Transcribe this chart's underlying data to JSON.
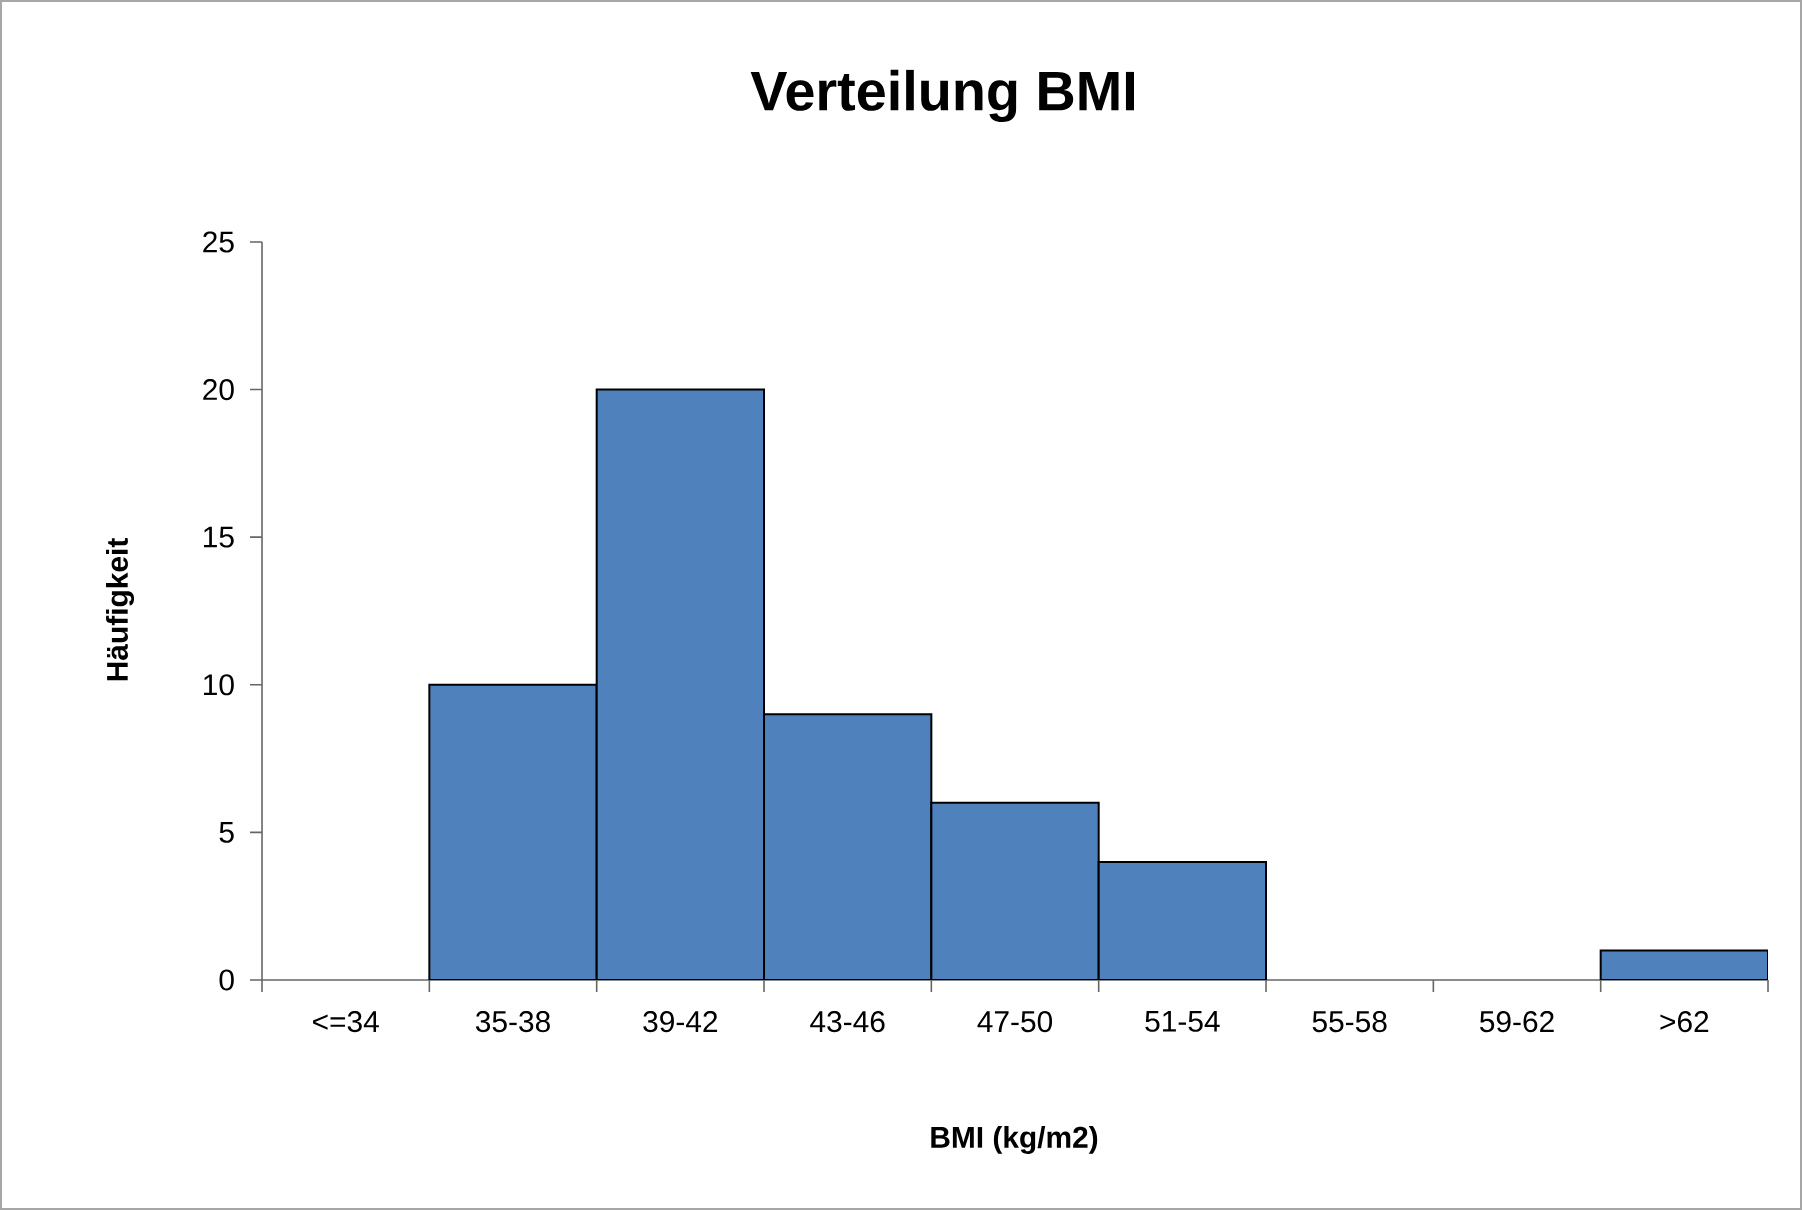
{
  "chart_data": {
    "type": "bar",
    "title": "Verteilung BMI",
    "xlabel": "BMI (kg/m2)",
    "ylabel": "Häufigkeit",
    "categories": [
      "<=34",
      "35-38",
      "39-42",
      "43-46",
      "47-50",
      "51-54",
      "55-58",
      "59-62",
      ">62"
    ],
    "values": [
      0,
      10,
      20,
      9,
      6,
      4,
      0,
      0,
      1
    ],
    "color": "#4f81bd",
    "ylim": [
      0,
      25
    ],
    "yticks": [
      0,
      5,
      10,
      15,
      20,
      25
    ]
  }
}
